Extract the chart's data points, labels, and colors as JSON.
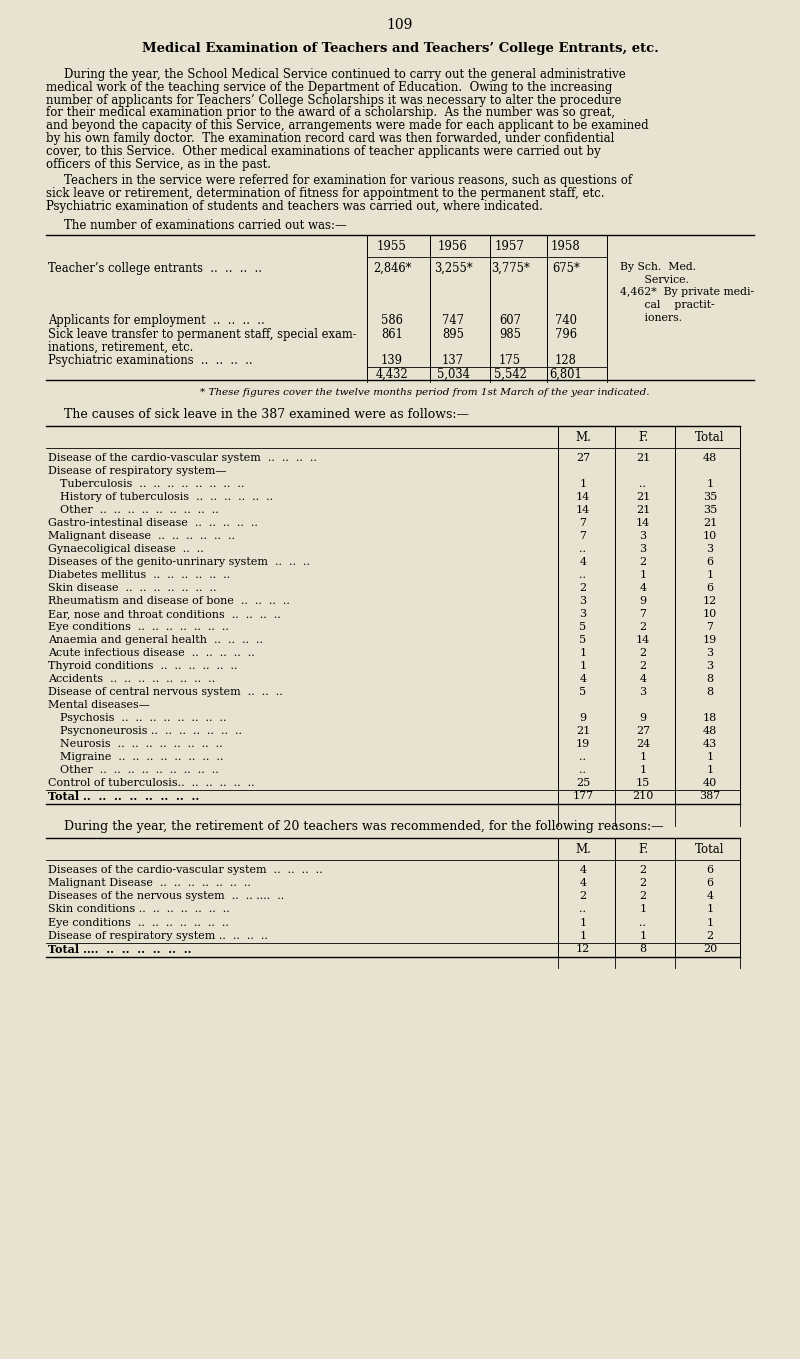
{
  "page_number": "109",
  "bg_color": "#e8e3d0",
  "title": "Medical Examination of Teachers and Teachers’ College Entrants, etc.",
  "para1": "During the year, the School Medical Service continued to carry out the general administrative medical work of the teaching service of the Department of Education.  Owing to the increasing number of applicants for Teachers’ College Scholarships it was necessary to alter the procedure for their medical examination prior to the award of a scholarship.  As the number was so great, and beyond the capacity of this Service, arrangements were made for each applicant to be examined by his own family doctor.  The examination record card was then forwarded, under confidential cover, to this Service.  Other medical examinations of teacher applicants were carried out by officers of this Service, as in the past.",
  "para2": "Teachers in the service were referred for examination for various reasons, such as questions of sick leave or retirement, determination of fitness for appointment to the permanent staff, etc. Psychiatric examination of students and teachers was carried out, where indicated.",
  "para3": "The number of examinations carried out was:—",
  "table1_col_headers": [
    "1955",
    "1956",
    "1957",
    "1958"
  ],
  "table1_rows": [
    {
      "label": "Teacher’s college entrants  ..  ..  ..  ..",
      "vals": [
        "2,846*",
        "3,255*",
        "3,775*",
        "675*"
      ],
      "note_right": "By Sch.  Med.\n       Service.\n4,462*  By private medi-\n       cal    practit-\n       ioners."
    },
    {
      "label": "Applicants for employment  ..  ..  ..  ..",
      "vals": [
        "586",
        "747",
        "607",
        "740"
      ],
      "note_right": ""
    },
    {
      "label": "Sick leave transfer to permanent staff, special exam-\n    inations, retirement, etc.",
      "vals": [
        "861",
        "895",
        "985",
        "796"
      ],
      "note_right": ""
    },
    {
      "label": "Psychiatric examinations  ..  ..  ..  ..",
      "vals": [
        "139",
        "137",
        "175",
        "128"
      ],
      "note_right": ""
    },
    {
      "label": "",
      "vals": [
        "4,432",
        "5,034",
        "5,542",
        "6,801"
      ],
      "note_right": ""
    }
  ],
  "table1_footnote": "* These figures cover the twelve months period from 1st March of the year indicated.",
  "para4": "The causes of sick leave in the 387 examined were as follows:—",
  "table2_col_headers": [
    "M.",
    "F.",
    "Total"
  ],
  "table2_rows": [
    {
      "label": "Disease of the cardio-vascular system  ..  ..  ..  ..",
      "m": "27",
      "f": "21",
      "t": "48",
      "indent": false
    },
    {
      "label": "Disease of respiratory system—",
      "m": "",
      "f": "",
      "t": "",
      "indent": false
    },
    {
      "label": "Tuberculosis  ..  ..  ..  ..  ..  ..  ..  ..",
      "m": "1",
      "f": "..",
      "t": "1",
      "indent": true
    },
    {
      "label": "History of tuberculosis  ..  ..  ..  ..  ..  ..",
      "m": "14",
      "f": "21",
      "t": "35",
      "indent": true
    },
    {
      "label": "Other  ..  ..  ..  ..  ..  ..  ..  ..  ..",
      "m": "14",
      "f": "21",
      "t": "35",
      "indent": true
    },
    {
      "label": "Gastro-intestinal disease  ..  ..  ..  ..  ..",
      "m": "7",
      "f": "14",
      "t": "21",
      "indent": false
    },
    {
      "label": "Malignant disease  ..  ..  ..  ..  ..  ..",
      "m": "7",
      "f": "3",
      "t": "10",
      "indent": false
    },
    {
      "label": "Gynaecoligical disease  ..  ..",
      "m": "..",
      "f": "3",
      "t": "3",
      "indent": false
    },
    {
      "label": "Diseases of the genito-unrinary system  ..  ..  ..",
      "m": "4",
      "f": "2",
      "t": "6",
      "indent": false
    },
    {
      "label": "Diabetes mellitus  ..  ..  ..  ..  ..  ..",
      "m": "..",
      "f": "1",
      "t": "1",
      "indent": false
    },
    {
      "label": "Skin disease  ..  ..  ..  ..  ..  ..  ..",
      "m": "2",
      "f": "4",
      "t": "6",
      "indent": false
    },
    {
      "label": "Rheumatism and disease of bone  ..  ..  ..  ..",
      "m": "3",
      "f": "9",
      "t": "12",
      "indent": false
    },
    {
      "label": "Ear, nose and throat conditions  ..  ..  ..  ..",
      "m": "3",
      "f": "7",
      "t": "10",
      "indent": false
    },
    {
      "label": "Eye conditions  ..  ..  ..  ..  ..  ..  ..",
      "m": "5",
      "f": "2",
      "t": "7",
      "indent": false
    },
    {
      "label": "Anaemia and general health  ..  ..  ..  ..",
      "m": "5",
      "f": "14",
      "t": "19",
      "indent": false
    },
    {
      "label": "Acute infectious disease  ..  ..  ..  ..  ..",
      "m": "1",
      "f": "2",
      "t": "3",
      "indent": false
    },
    {
      "label": "Thyroid conditions  ..  ..  ..  ..  ..  ..",
      "m": "1",
      "f": "2",
      "t": "3",
      "indent": false
    },
    {
      "label": "Accidents  ..  ..  ..  ..  ..  ..  ..  ..",
      "m": "4",
      "f": "4",
      "t": "8",
      "indent": false
    },
    {
      "label": "Disease of central nervous system  ..  ..  ..",
      "m": "5",
      "f": "3",
      "t": "8",
      "indent": false
    },
    {
      "label": "Mental diseases—",
      "m": "",
      "f": "",
      "t": "",
      "indent": false
    },
    {
      "label": "Psychosis  ..  ..  ..  ..  ..  ..  ..  ..",
      "m": "9",
      "f": "9",
      "t": "18",
      "indent": true
    },
    {
      "label": "Psycnoneurosis ..  ..  ..  ..  ..  ..  ..",
      "m": "21",
      "f": "27",
      "t": "48",
      "indent": true
    },
    {
      "label": "Neurosis  ..  ..  ..  ..  ..  ..  ..  ..",
      "m": "19",
      "f": "24",
      "t": "43",
      "indent": true
    },
    {
      "label": "Migraine  ..  ..  ..  ..  ..  ..  ..  ..",
      "m": "..",
      "f": "1",
      "t": "1",
      "indent": true
    },
    {
      "label": "Other  ..  ..  ..  ..  ..  ..  ..  ..  ..",
      "m": "..",
      "f": "1",
      "t": "1",
      "indent": true
    },
    {
      "label": "Control of tuberculosis..  ..  ..  ..  ..  ..",
      "m": "25",
      "f": "15",
      "t": "40",
      "indent": false
    },
    {
      "label": "Total ..  ..  ..  ..  ..  ..  ..  ..",
      "m": "177",
      "f": "210",
      "t": "387",
      "is_total": true,
      "indent": false
    }
  ],
  "para5": "During the year, the retirement of 20 teachers was recommended, for the following reasons:—",
  "table3_col_headers": [
    "M.",
    "F.",
    "Total"
  ],
  "table3_rows": [
    {
      "label": "Diseases of the cardio-vascular system  ..  ..  ..  ..",
      "m": "4",
      "f": "2",
      "t": "6"
    },
    {
      "label": "Malignant Disease  ..  ..  ..  ..  ..  ..  ..",
      "m": "4",
      "f": "2",
      "t": "6"
    },
    {
      "label": "Diseases of the nervous system  ..  .. ....  ..",
      "m": "2",
      "f": "2",
      "t": "4"
    },
    {
      "label": "Skin conditions ..  ..  ..  ..  ..  ..  ..",
      "m": "..",
      "f": "1",
      "t": "1"
    },
    {
      "label": "Eye conditions  ..  ..  ..  ..  ..  ..  ..",
      "m": "1",
      "f": "..",
      "t": "1"
    },
    {
      "label": "Disease of respiratory system ..  ..  ..  ..",
      "m": "1",
      "f": "1",
      "t": "2"
    },
    {
      "label": "Total ....  ..  ..  ..  ..  ..  ..",
      "m": "12",
      "f": "8",
      "t": "20",
      "is_total": true
    }
  ]
}
